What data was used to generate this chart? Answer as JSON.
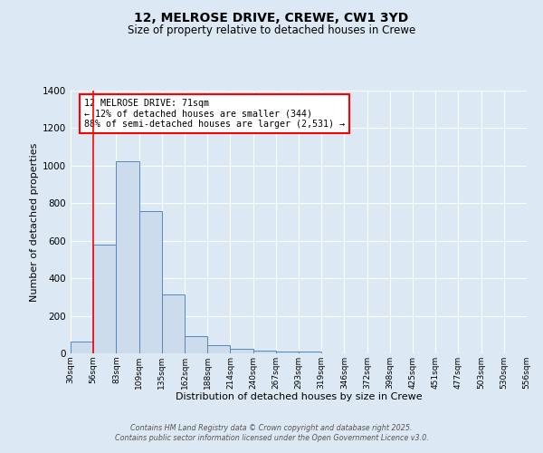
{
  "title": "12, MELROSE DRIVE, CREWE, CW1 3YD",
  "subtitle": "Size of property relative to detached houses in Crewe",
  "xlabel": "Distribution of detached houses by size in Crewe",
  "ylabel": "Number of detached properties",
  "bar_values": [
    65,
    580,
    1025,
    760,
    315,
    90,
    45,
    22,
    15,
    10,
    10,
    0,
    0,
    0,
    0,
    0,
    0,
    0,
    0,
    0
  ],
  "bar_labels": [
    "30sqm",
    "56sqm",
    "83sqm",
    "109sqm",
    "135sqm",
    "162sqm",
    "188sqm",
    "214sqm",
    "240sqm",
    "267sqm",
    "293sqm",
    "319sqm",
    "346sqm",
    "372sqm",
    "398sqm",
    "425sqm",
    "451sqm",
    "477sqm",
    "503sqm",
    "530sqm",
    "556sqm"
  ],
  "bar_color": "#ccdcec",
  "bar_edge_color": "#5588bb",
  "background_color": "#dce8f4",
  "grid_color": "#ffffff",
  "red_line_x": 1.0,
  "ylim": [
    0,
    1400
  ],
  "yticks": [
    0,
    200,
    400,
    600,
    800,
    1000,
    1200,
    1400
  ],
  "annotation_title": "12 MELROSE DRIVE: 71sqm",
  "annotation_line1": "← 12% of detached houses are smaller (344)",
  "annotation_line2": "88% of semi-detached houses are larger (2,531) →",
  "footer1": "Contains HM Land Registry data © Crown copyright and database right 2025.",
  "footer2": "Contains public sector information licensed under the Open Government Licence v3.0."
}
